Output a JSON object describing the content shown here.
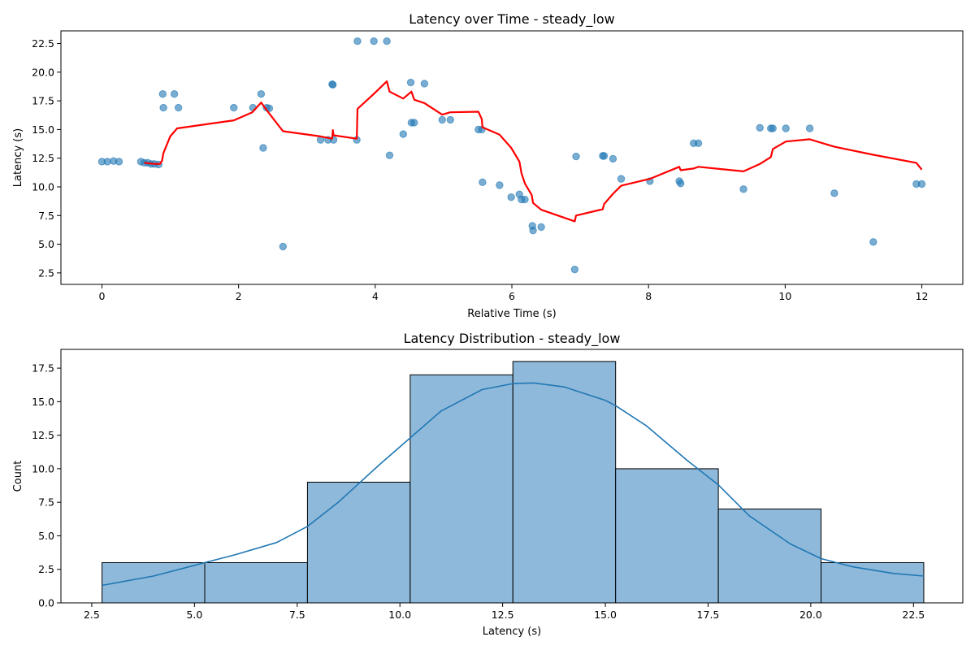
{
  "chart_data": [
    {
      "type": "scatter",
      "title": "Latency over Time - steady_low",
      "xlabel": "Relative Time (s)",
      "ylabel": "Latency (s)",
      "xlim": [
        -0.6,
        12.6
      ],
      "ylim": [
        1.5,
        23.6
      ],
      "xticks": [
        "0",
        "2",
        "4",
        "6",
        "8",
        "10",
        "12"
      ],
      "yticks": [
        "2.5",
        "5.0",
        "7.5",
        "10.0",
        "12.5",
        "15.0",
        "17.5",
        "20.0",
        "22.5"
      ],
      "grid": false,
      "colors": {
        "points": "#1f77b4",
        "trend": "#ff0000"
      },
      "series": [
        {
          "kind": "points",
          "x": [
            0.0,
            0.08,
            0.17,
            0.25,
            0.57,
            0.62,
            0.67,
            0.72,
            0.77,
            0.83,
            0.89,
            0.9,
            1.06,
            1.12,
            1.93,
            2.21,
            2.33,
            2.36,
            2.41,
            2.45,
            2.65,
            3.2,
            3.31,
            3.37,
            3.38,
            3.39,
            3.73,
            3.74,
            3.98,
            4.17,
            4.21,
            4.41,
            4.52,
            4.53,
            4.57,
            4.72,
            4.98,
            5.1,
            5.51,
            5.56,
            5.57,
            5.82,
            5.99,
            6.11,
            6.14,
            6.19,
            6.3,
            6.31,
            6.43,
            6.92,
            6.94,
            7.33,
            7.35,
            7.48,
            7.6,
            8.02,
            8.45,
            8.47,
            8.66,
            8.73,
            9.39,
            9.63,
            9.79,
            9.82,
            10.01,
            10.36,
            10.72,
            11.29,
            11.92,
            12.0
          ],
          "y": [
            12.2,
            12.2,
            12.25,
            12.2,
            12.2,
            12.1,
            12.1,
            12.0,
            12.0,
            11.95,
            18.1,
            16.9,
            18.1,
            16.9,
            16.9,
            16.9,
            18.1,
            13.4,
            16.9,
            16.85,
            4.8,
            14.1,
            14.1,
            18.95,
            18.9,
            14.1,
            14.1,
            22.7,
            22.7,
            22.7,
            12.75,
            14.6,
            19.1,
            15.6,
            15.6,
            19.0,
            15.85,
            15.85,
            15.0,
            15.0,
            10.4,
            10.15,
            9.1,
            9.35,
            8.9,
            8.9,
            6.6,
            6.2,
            6.5,
            2.8,
            12.65,
            12.7,
            12.7,
            12.45,
            10.7,
            10.5,
            10.5,
            10.3,
            13.8,
            13.8,
            9.8,
            15.15,
            15.1,
            15.1,
            15.1,
            15.1,
            9.45,
            5.2,
            10.25,
            10.25
          ]
        },
        {
          "kind": "trend-line",
          "x": [
            0.62,
            0.7,
            0.8,
            0.85,
            0.88,
            0.9,
            1.0,
            1.1,
            1.93,
            2.2,
            2.33,
            2.41,
            2.65,
            3.2,
            3.37,
            3.38,
            3.39,
            3.73,
            3.74,
            3.98,
            4.17,
            4.21,
            4.41,
            4.53,
            4.57,
            4.72,
            4.98,
            5.1,
            5.51,
            5.56,
            5.57,
            5.82,
            5.99,
            6.11,
            6.14,
            6.19,
            6.29,
            6.31,
            6.43,
            6.92,
            6.94,
            7.33,
            7.35,
            7.48,
            7.6,
            8.02,
            8.45,
            8.47,
            8.66,
            8.73,
            9.39,
            9.63,
            9.79,
            9.82,
            10.01,
            10.36,
            10.72,
            11.29,
            11.92,
            12.0
          ],
          "y": [
            12.1,
            12.05,
            12.0,
            12.0,
            12.3,
            12.95,
            14.4,
            15.1,
            15.8,
            16.5,
            17.35,
            16.7,
            14.85,
            14.4,
            14.2,
            14.95,
            14.5,
            14.2,
            16.8,
            18.1,
            19.2,
            18.3,
            17.7,
            18.3,
            17.6,
            17.3,
            16.3,
            16.5,
            16.55,
            15.9,
            15.2,
            14.55,
            13.4,
            12.2,
            11.2,
            10.3,
            9.3,
            8.6,
            8.0,
            7.0,
            7.5,
            8.05,
            8.5,
            9.4,
            10.1,
            10.7,
            11.75,
            11.45,
            11.6,
            11.75,
            11.35,
            12.0,
            12.6,
            13.3,
            13.95,
            14.15,
            13.5,
            12.8,
            12.1,
            11.5
          ]
        }
      ]
    },
    {
      "type": "histogram",
      "title": "Latency Distribution - steady_low",
      "xlabel": "Latency (s)",
      "ylabel": "Count",
      "xlim": [
        1.75,
        23.7
      ],
      "ylim": [
        0,
        18.9
      ],
      "xticks": [
        "2.5",
        "5.0",
        "7.5",
        "10.0",
        "12.5",
        "15.0",
        "17.5",
        "20.0",
        "22.5"
      ],
      "yticks": [
        "0.0",
        "2.5",
        "5.0",
        "7.5",
        "10.0",
        "12.5",
        "15.0",
        "17.5"
      ],
      "grid": false,
      "colors": {
        "bars": "#8fb9da",
        "edge": "#000000",
        "kde": "#1f77b4"
      },
      "bin_edges": [
        2.75,
        5.25,
        7.75,
        10.25,
        12.75,
        15.25,
        17.75,
        20.25,
        22.75
      ],
      "counts": [
        3,
        3,
        9,
        17,
        18,
        10,
        7,
        3
      ],
      "kde": {
        "x": [
          2.75,
          4.0,
          5.0,
          6.0,
          7.0,
          7.75,
          8.5,
          9.5,
          10.25,
          11.0,
          12.0,
          12.75,
          13.25,
          14.0,
          15.0,
          15.25,
          16.0,
          17.0,
          17.75,
          18.5,
          19.5,
          20.25,
          21.0,
          22.0,
          22.75
        ],
        "y": [
          1.3,
          2.0,
          2.8,
          3.6,
          4.5,
          5.7,
          7.5,
          10.3,
          12.3,
          14.3,
          15.9,
          16.35,
          16.4,
          16.1,
          15.1,
          14.7,
          13.2,
          10.6,
          8.8,
          6.5,
          4.4,
          3.3,
          2.7,
          2.2,
          2.0
        ]
      }
    }
  ]
}
